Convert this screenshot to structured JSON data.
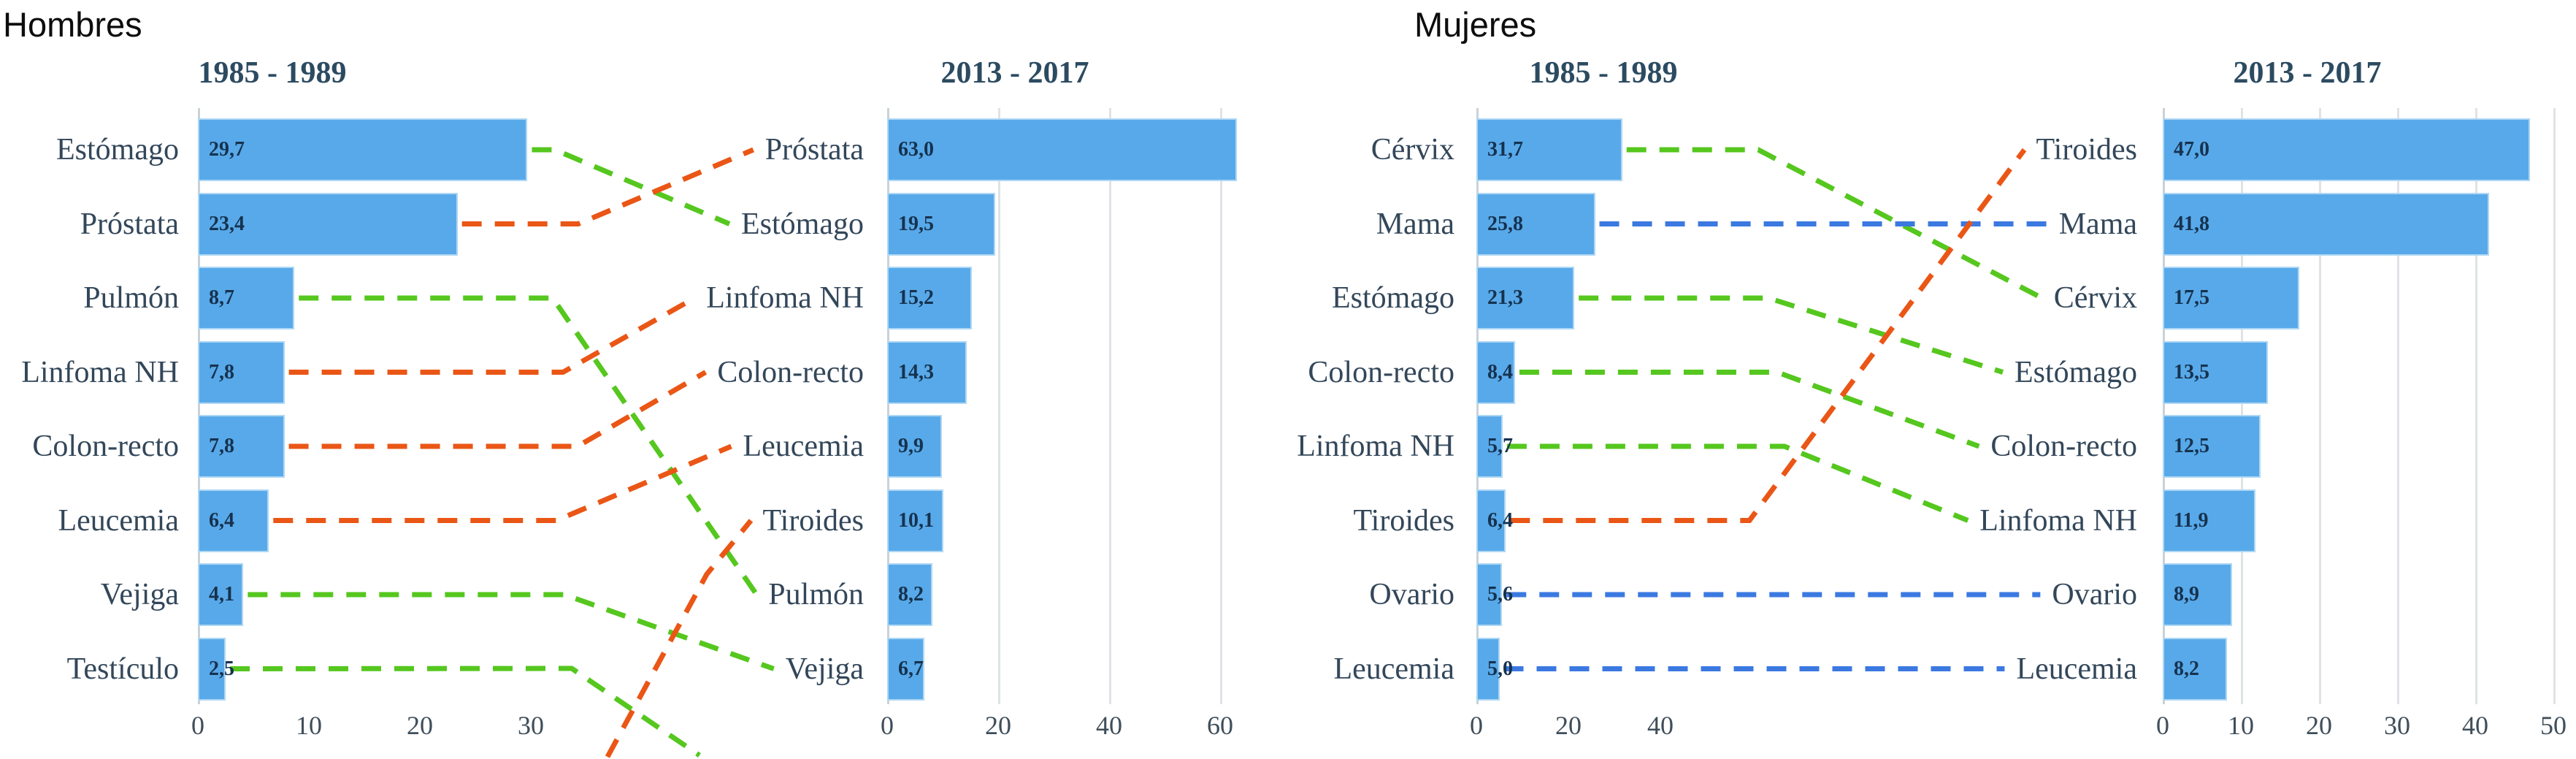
{
  "panels": [
    {
      "label": "Hombres"
    },
    {
      "label": "Mujeres"
    }
  ],
  "colors": {
    "bar_fill": "#58a9e9",
    "bar_edge": "#aed7f4",
    "rank_up": "#ea5616",
    "rank_down": "#55c71e",
    "rank_same": "#3b79e1",
    "gridline": "#dfe3e6",
    "axis_line": "#c9d2d8",
    "chart_title": "#2c4b61",
    "category_label": "#33475a",
    "value_label": "#16324f",
    "tick_label": "#3f4e5a",
    "panel_title": "#0d0d0d"
  },
  "chart_data": [
    {
      "id": "hombres-1985",
      "panel": "Hombres",
      "type": "bar",
      "orientation": "horizontal",
      "title": "1985 - 1989",
      "categories": [
        "Estómago",
        "Próstata",
        "Pulmón",
        "Linfoma NH",
        "Colon-recto",
        "Leucemia",
        "Vejiga",
        "Testículo"
      ],
      "values": [
        29.7,
        23.4,
        8.7,
        7.8,
        7.8,
        6.4,
        4.1,
        2.5
      ],
      "value_labels": [
        "29,7",
        "23,4",
        "8,7",
        "7,8",
        "7,8",
        "6,4",
        "4,1",
        "2,5"
      ],
      "xticks": [
        0,
        10,
        20,
        30
      ],
      "xlim": [
        0,
        33
      ],
      "grid": false
    },
    {
      "id": "hombres-2013",
      "panel": "Hombres",
      "type": "bar",
      "orientation": "horizontal",
      "title": "2013 - 2017",
      "categories": [
        "Próstata",
        "Estómago",
        "Linfoma NH",
        "Colon-recto",
        "Leucemia",
        "Tiroides",
        "Pulmón",
        "Vejiga"
      ],
      "values": [
        63.0,
        19.5,
        15.2,
        14.3,
        9.9,
        10.1,
        8.2,
        6.7
      ],
      "value_labels": [
        "63,0",
        "19,5",
        "15,2",
        "14,3",
        "9,9",
        "10,1",
        "8,2",
        "6,7"
      ],
      "xticks": [
        0,
        20,
        40,
        60
      ],
      "xlim": [
        0,
        68
      ],
      "grid": true
    },
    {
      "id": "mujeres-1985",
      "panel": "Mujeres",
      "type": "bar",
      "orientation": "horizontal",
      "title": "1985 - 1989",
      "categories": [
        "Cérvix",
        "Mama",
        "Estómago",
        "Colon-recto",
        "Linfoma NH",
        "Tiroides",
        "Ovario",
        "Leucemia"
      ],
      "values": [
        31.7,
        25.8,
        21.3,
        8.4,
        5.7,
        6.4,
        5.6,
        5.0
      ],
      "value_labels": [
        "31,7",
        "25,8",
        "21,3",
        "8,4",
        "5,7",
        "6,4",
        "5,6",
        "5,0"
      ],
      "xticks": [
        0,
        20,
        40
      ],
      "xlim": [
        0,
        55
      ],
      "grid": false
    },
    {
      "id": "mujeres-2013",
      "panel": "Mujeres",
      "type": "bar",
      "orientation": "horizontal",
      "title": "2013 - 2017",
      "categories": [
        "Tiroides",
        "Mama",
        "Cérvix",
        "Estómago",
        "Colon-recto",
        "Linfoma NH",
        "Ovario",
        "Leucemia"
      ],
      "values": [
        47.0,
        41.8,
        17.5,
        13.5,
        12.5,
        11.9,
        8.9,
        8.2
      ],
      "value_labels": [
        "47,0",
        "41,8",
        "17,5",
        "13,5",
        "12,5",
        "11,9",
        "8,9",
        "8,2"
      ],
      "xticks": [
        0,
        10,
        20,
        30,
        40,
        50
      ],
      "xlim": [
        0,
        53
      ],
      "grid": true
    }
  ],
  "connectors": [
    {
      "panel": "Hombres",
      "from": "Estómago",
      "to": "Estómago",
      "trend": "down"
    },
    {
      "panel": "Hombres",
      "from": "Próstata",
      "to": "Próstata",
      "trend": "up"
    },
    {
      "panel": "Hombres",
      "from": "Pulmón",
      "to": "Pulmón",
      "trend": "down"
    },
    {
      "panel": "Hombres",
      "from": "Linfoma NH",
      "to": "Linfoma NH",
      "trend": "up"
    },
    {
      "panel": "Hombres",
      "from": "Colon-recto",
      "to": "Colon-recto",
      "trend": "up"
    },
    {
      "panel": "Hombres",
      "from": "Leucemia",
      "to": "Leucemia",
      "trend": "up"
    },
    {
      "panel": "Hombres",
      "from": "Vejiga",
      "to": "Vejiga",
      "trend": "down"
    },
    {
      "panel": "Hombres",
      "from": "Testículo",
      "to": null,
      "trend": "down",
      "exit": "bottom"
    },
    {
      "panel": "Hombres",
      "from": null,
      "to": "Tiroides",
      "trend": "up",
      "enter": "bottom"
    },
    {
      "panel": "Mujeres",
      "from": "Cérvix",
      "to": "Cérvix",
      "trend": "down"
    },
    {
      "panel": "Mujeres",
      "from": "Mama",
      "to": "Mama",
      "trend": "same"
    },
    {
      "panel": "Mujeres",
      "from": "Estómago",
      "to": "Estómago",
      "trend": "down"
    },
    {
      "panel": "Mujeres",
      "from": "Colon-recto",
      "to": "Colon-recto",
      "trend": "down"
    },
    {
      "panel": "Mujeres",
      "from": "Linfoma NH",
      "to": "Linfoma NH",
      "trend": "down"
    },
    {
      "panel": "Mujeres",
      "from": "Tiroides",
      "to": "Tiroides",
      "trend": "up"
    },
    {
      "panel": "Mujeres",
      "from": "Ovario",
      "to": "Ovario",
      "trend": "same"
    },
    {
      "panel": "Mujeres",
      "from": "Leucemia",
      "to": "Leucemia",
      "trend": "same"
    }
  ]
}
